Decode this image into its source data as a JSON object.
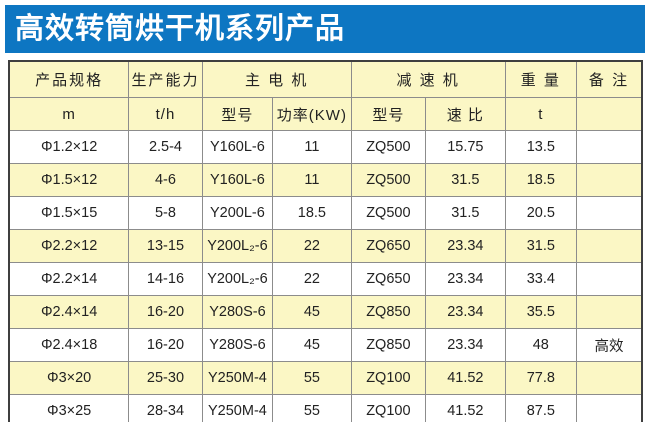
{
  "title_bar": {
    "title": "高效转筒烘干机系列产品",
    "bg_color": "#0d76c2",
    "text_color": "#ffffff"
  },
  "table": {
    "group_headers": [
      {
        "label": "产品规格",
        "span": 1
      },
      {
        "label": "生产能力",
        "span": 1
      },
      {
        "label": "主 电 机",
        "span": 2
      },
      {
        "label": "减 速 机",
        "span": 2
      },
      {
        "label": "重 量",
        "span": 1
      },
      {
        "label": "备 注",
        "span": 1
      }
    ],
    "sub_headers": [
      "m",
      "t/h",
      "型号",
      "功率(KW)",
      "型号",
      "速 比",
      "t",
      ""
    ],
    "rows": [
      [
        "Φ1.2×12",
        "2.5-4",
        "Y160L-6",
        "11",
        "ZQ500",
        "15.75",
        "13.5",
        ""
      ],
      [
        "Φ1.5×12",
        "4-6",
        "Y160L-6",
        "11",
        "ZQ500",
        "31.5",
        "18.5",
        ""
      ],
      [
        "Φ1.5×15",
        "5-8",
        "Y200L-6",
        "18.5",
        "ZQ500",
        "31.5",
        "20.5",
        ""
      ],
      [
        "Φ2.2×12",
        "13-15",
        "Y200L₂-6",
        "22",
        "ZQ650",
        "23.34",
        "31.5",
        ""
      ],
      [
        "Φ2.2×14",
        "14-16",
        "Y200L₂-6",
        "22",
        "ZQ650",
        "23.34",
        "33.4",
        ""
      ],
      [
        "Φ2.4×14",
        "16-20",
        "Y280S-6",
        "45",
        "ZQ850",
        "23.34",
        "35.5",
        ""
      ],
      [
        "Φ2.4×18",
        "16-20",
        "Y280S-6",
        "45",
        "ZQ850",
        "23.34",
        "48",
        "高效"
      ],
      [
        "Φ3×20",
        "25-30",
        "Y250M-4",
        "55",
        "ZQ100",
        "41.52",
        "77.8",
        ""
      ],
      [
        "Φ3×25",
        "28-34",
        "Y250M-4",
        "55",
        "ZQ100",
        "41.52",
        "87.5",
        ""
      ]
    ],
    "colors": {
      "header_bg": "#fbf7c5",
      "row_bg": "#ffffff",
      "row_alt_bg": "#fbf7c5",
      "border_outer": "#3f3f3f",
      "border_inner": "#8c8c8c"
    }
  }
}
